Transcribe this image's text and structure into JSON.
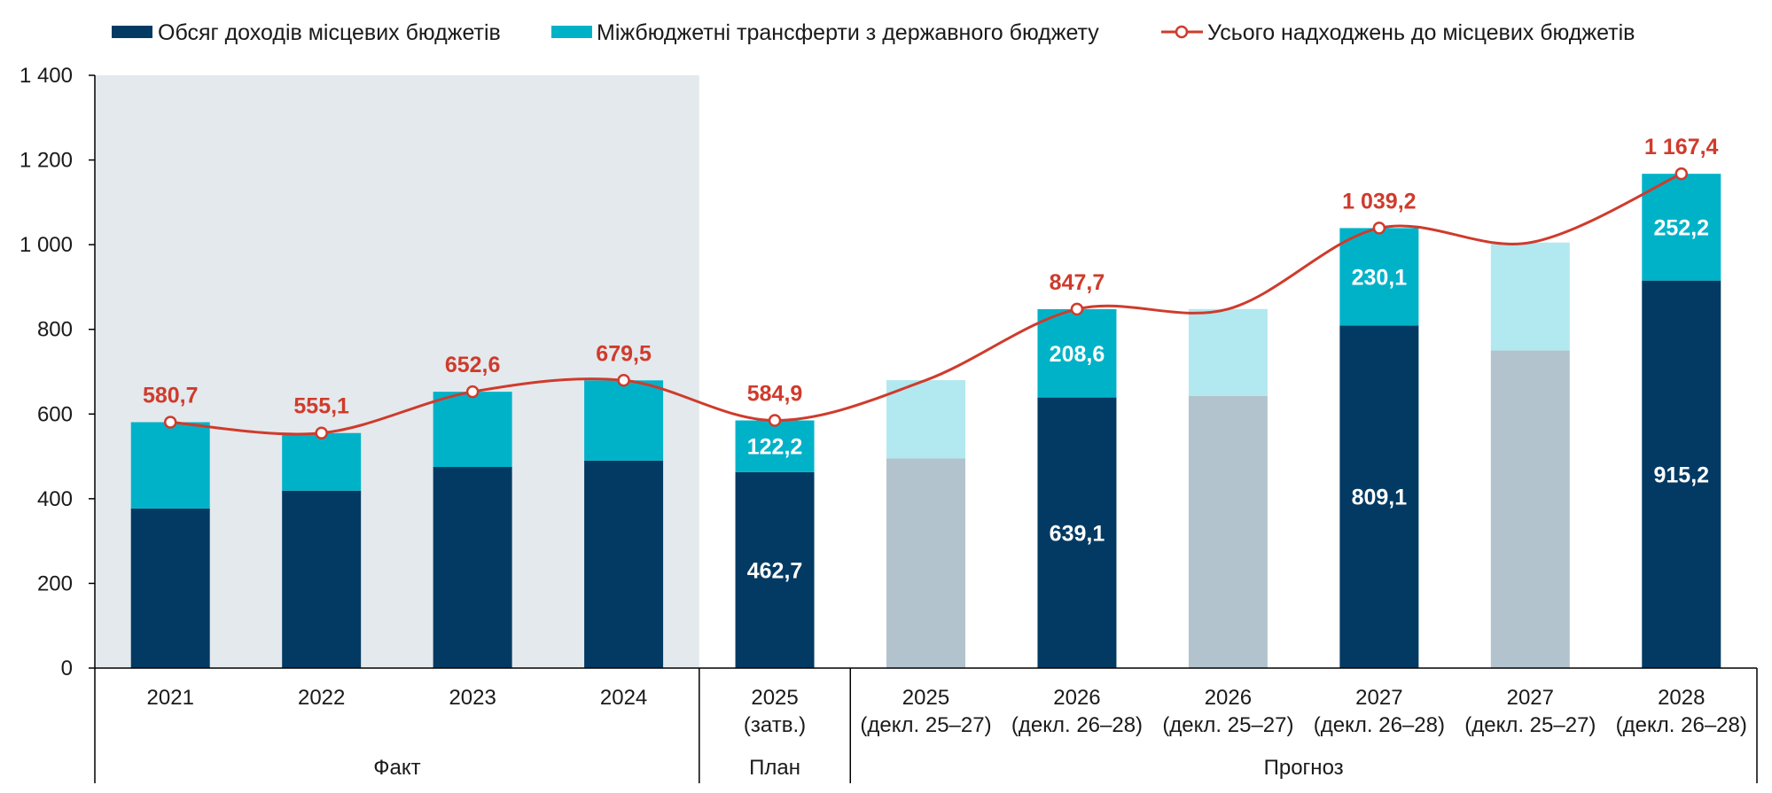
{
  "chart_data": {
    "type": "bar",
    "stacked": true,
    "ylim": [
      0,
      1400
    ],
    "yticks": [
      "0",
      "200",
      "400",
      "600",
      "800",
      "1 000",
      "1 200",
      "1 400"
    ],
    "grid": false,
    "legend_position": "top",
    "colors": {
      "revenue": "#023a63",
      "transfers": "#00b2c8",
      "revenue_faded": "#b2c3cd",
      "transfers_faded": "#b2e8ef",
      "total_line": "#cf3b2c",
      "shade": "#e4e9ed"
    },
    "legend": [
      "Обсяг доходів місцевих бюджетів",
      "Міжбюджетні трансферти з державного бюджету",
      "Усього надходжень до місцевих бюджетів"
    ],
    "categories": [
      {
        "line1": "2021",
        "line2": "",
        "revenue": 377,
        "transfers": 203.7,
        "total": 580.7,
        "total_label": "580,7",
        "rev_label": "",
        "tr_label": "",
        "faded": false
      },
      {
        "line1": "2022",
        "line2": "",
        "revenue": 419,
        "transfers": 136.1,
        "total": 555.1,
        "total_label": "555,1",
        "rev_label": "",
        "tr_label": "",
        "faded": false
      },
      {
        "line1": "2023",
        "line2": "",
        "revenue": 475,
        "transfers": 177.6,
        "total": 652.6,
        "total_label": "652,6",
        "rev_label": "",
        "tr_label": "",
        "faded": false
      },
      {
        "line1": "2024",
        "line2": "",
        "revenue": 490,
        "transfers": 189.5,
        "total": 679.5,
        "total_label": "679,5",
        "rev_label": "",
        "tr_label": "",
        "faded": false
      },
      {
        "line1": "2025",
        "line2": "(затв.)",
        "revenue": 462.7,
        "transfers": 122.2,
        "total": 584.9,
        "total_label": "584,9",
        "rev_label": "462,7",
        "tr_label": "122,2",
        "faded": false
      },
      {
        "line1": "2025",
        "line2": "(декл. 25–27)",
        "revenue": 495,
        "transfers": 185,
        "total": 680,
        "total_label": "",
        "rev_label": "",
        "tr_label": "",
        "faded": true
      },
      {
        "line1": "2026",
        "line2": "(декл. 26–28)",
        "revenue": 639.1,
        "transfers": 208.6,
        "total": 847.7,
        "total_label": "847,7",
        "rev_label": "639,1",
        "tr_label": "208,6",
        "faded": false
      },
      {
        "line1": "2026",
        "line2": "(декл. 25–27)",
        "revenue": 643,
        "transfers": 205,
        "total": 848,
        "total_label": "",
        "rev_label": "",
        "tr_label": "",
        "faded": true
      },
      {
        "line1": "2027",
        "line2": "(декл. 26–28)",
        "revenue": 809.1,
        "transfers": 230.1,
        "total": 1039.2,
        "total_label": "1 039,2",
        "rev_label": "809,1",
        "tr_label": "230,1",
        "faded": false
      },
      {
        "line1": "2027",
        "line2": "(декл. 25–27)",
        "revenue": 750,
        "transfers": 255,
        "total": 1005,
        "total_label": "",
        "rev_label": "",
        "tr_label": "",
        "faded": true
      },
      {
        "line1": "2028",
        "line2": "(декл. 26–28)",
        "revenue": 915.2,
        "transfers": 252.2,
        "total": 1167.4,
        "total_label": "1 167,4",
        "rev_label": "915,2",
        "tr_label": "252,2",
        "faded": false
      }
    ],
    "groups": [
      {
        "label": "Факт",
        "from": 0,
        "to": 3
      },
      {
        "label": "План",
        "from": 4,
        "to": 4
      },
      {
        "label": "Прогноз",
        "from": 5,
        "to": 10
      }
    ],
    "shaded_range": [
      0,
      3
    ]
  }
}
